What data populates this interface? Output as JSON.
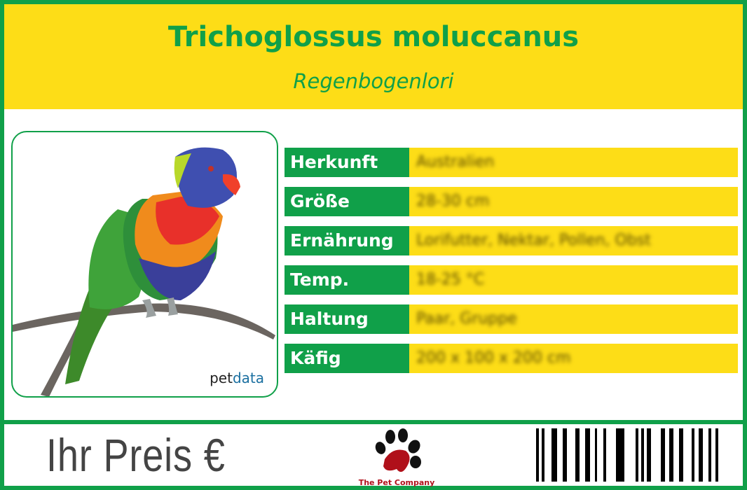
{
  "header": {
    "title": "Trichoglossus moluccanus",
    "subtitle": "Regenbogenlori"
  },
  "photo": {
    "brand_prefix": "pet",
    "brand_suffix": "data"
  },
  "attributes": [
    {
      "label": "Herkunft",
      "value": "Australien"
    },
    {
      "label": "Größe",
      "value": "28-30 cm"
    },
    {
      "label": "Ernährung",
      "value": "Lorifutter, Nektar, Pollen, Obst"
    },
    {
      "label": "Temp.",
      "value": "18-25 °C"
    },
    {
      "label": "Haltung",
      "value": "Paar, Gruppe"
    },
    {
      "label": "Käfig",
      "value": "200 x 100 x 200 cm"
    }
  ],
  "footer": {
    "price_label": "Ihr Preis €",
    "logo_text": "The Pet Company"
  },
  "colors": {
    "green": "#10a049",
    "yellow": "#fddd17",
    "logo_red": "#b0101a"
  }
}
